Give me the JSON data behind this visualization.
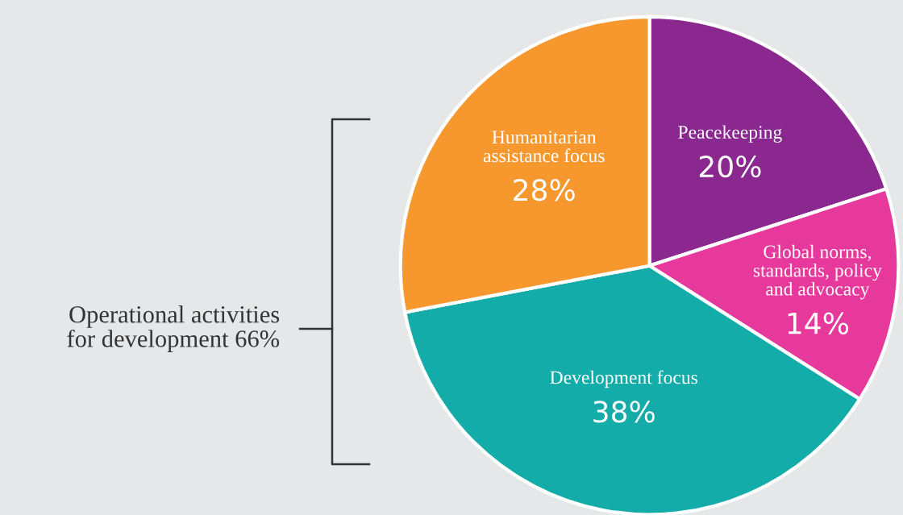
{
  "chart_data": {
    "type": "pie",
    "categories": [
      "Peacekeeping",
      "Global norms,\nstandards, policy\nand advocacy",
      "Development focus",
      "Humanitarian\nassistance focus"
    ],
    "values": [
      20,
      14,
      38,
      28
    ],
    "colors": [
      "#8a288f",
      "#e6399b",
      "#14aca9",
      "#f7982f"
    ],
    "value_labels": [
      "20%",
      "14%",
      "38%",
      "28%"
    ],
    "annotations": [
      "Operational activities\nfor development 66%"
    ]
  }
}
